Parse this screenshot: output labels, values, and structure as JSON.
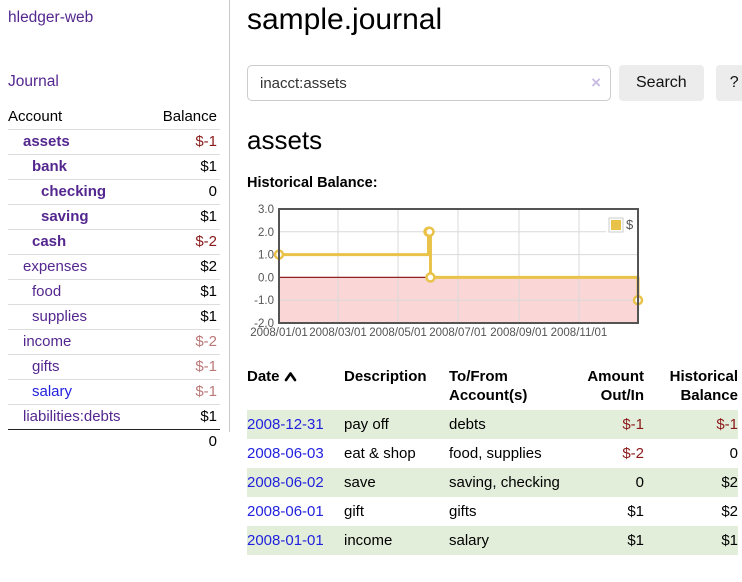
{
  "app": {
    "brand": "hledger-web",
    "nav_journal": "Journal"
  },
  "sidebar": {
    "accounts_header": {
      "account": "Account",
      "balance": "Balance"
    },
    "accounts": [
      {
        "name": "assets",
        "indent": 1,
        "bold": true,
        "balance": "$-1",
        "balance_style": "neg-strong"
      },
      {
        "name": "bank",
        "indent": 2,
        "bold": true,
        "balance": "$1",
        "balance_style": "normal-strong"
      },
      {
        "name": "checking",
        "indent": 3,
        "bold": true,
        "balance": "0",
        "balance_style": "normal-strong"
      },
      {
        "name": "saving",
        "indent": 3,
        "bold": true,
        "balance": "$1",
        "balance_style": "normal-strong"
      },
      {
        "name": "cash",
        "indent": 2,
        "bold": true,
        "balance": "$-2",
        "balance_style": "neg-strong"
      },
      {
        "name": "expenses",
        "indent": 1,
        "bold": false,
        "balance": "$2",
        "balance_style": "normal"
      },
      {
        "name": "food",
        "indent": 2,
        "bold": false,
        "balance": "$1",
        "balance_style": "normal"
      },
      {
        "name": "supplies",
        "indent": 2,
        "bold": false,
        "balance": "$1",
        "balance_style": "normal"
      },
      {
        "name": "income",
        "indent": 1,
        "bold": false,
        "balance": "$-2",
        "balance_style": "neg-soft"
      },
      {
        "name": "gifts",
        "indent": 2,
        "bold": false,
        "balance": "$-1",
        "balance_style": "neg-soft"
      },
      {
        "name": "salary",
        "indent": 2,
        "bold": false,
        "balance": "$-1",
        "balance_style": "neg-soft",
        "link_style": "unvisited"
      },
      {
        "name": "liabilities:debts",
        "indent": 1,
        "bold": false,
        "balance": "$1",
        "balance_style": "normal"
      }
    ],
    "total": "0"
  },
  "header": {
    "title": "sample.journal"
  },
  "search": {
    "value": "inacct:assets",
    "clear_icon": "×",
    "search_button": "Search",
    "help_button": "?"
  },
  "account_page": {
    "heading": "assets",
    "chart_label": "Historical Balance:"
  },
  "chart_data": {
    "type": "line",
    "step": true,
    "title": "Historical Balance",
    "series": [
      {
        "name": "$",
        "color": "#e9c24a",
        "points": [
          [
            "2008-01-01",
            1
          ],
          [
            "2008-06-01",
            2
          ],
          [
            "2008-06-02",
            2
          ],
          [
            "2008-06-03",
            0
          ],
          [
            "2008-12-31",
            -1
          ]
        ]
      }
    ],
    "x_ticks": [
      "2008/01/01",
      "2008/03/01",
      "2008/05/01",
      "2008/07/01",
      "2008/09/01",
      "2008/11/01"
    ],
    "y_ticks": [
      3.0,
      2.0,
      1.0,
      0.0,
      -1.0,
      -2.0
    ],
    "xlim": [
      "2008-01-01",
      "2008-12-31"
    ],
    "ylim": [
      -2,
      3
    ],
    "grid": true,
    "legend_position": "top-right",
    "negative_region": true
  },
  "register": {
    "columns": {
      "date": "Date",
      "description": "Description",
      "tofrom_line1": "To/From",
      "tofrom_line2": "Account(s)",
      "amount_line1": "Amount",
      "amount_line2": "Out/In",
      "balance_line1": "Historical",
      "balance_line2": "Balance"
    },
    "rows": [
      {
        "date": "2008-12-31",
        "description": "pay off",
        "accounts": "debts",
        "amount": "$-1",
        "amount_negative": true,
        "balance": "$-1",
        "balance_negative": true
      },
      {
        "date": "2008-06-03",
        "description": "eat & shop",
        "accounts": "food, supplies",
        "amount": "$-2",
        "amount_negative": true,
        "balance": "0",
        "balance_negative": false
      },
      {
        "date": "2008-06-02",
        "description": "save",
        "accounts": "saving, checking",
        "amount": "0",
        "amount_negative": false,
        "balance": "$2",
        "balance_negative": false
      },
      {
        "date": "2008-06-01",
        "description": "gift",
        "accounts": "gifts",
        "amount": "$1",
        "amount_negative": false,
        "balance": "$2",
        "balance_negative": false
      },
      {
        "date": "2008-01-01",
        "description": "income",
        "accounts": "salary",
        "amount": "$1",
        "amount_negative": false,
        "balance": "$1",
        "balance_negative": false
      }
    ]
  },
  "colors": {
    "accent_purple": "#54278f",
    "link_blue": "#2222dd",
    "negative": "#8b1a1a",
    "negative_soft": "#bc7878",
    "row_green": "#e3eeda",
    "chart_line": "#e9c24a",
    "chart_negative_bg": "#fad6d6",
    "chart_zero_line": "#8e2222",
    "chart_border": "#545454"
  }
}
